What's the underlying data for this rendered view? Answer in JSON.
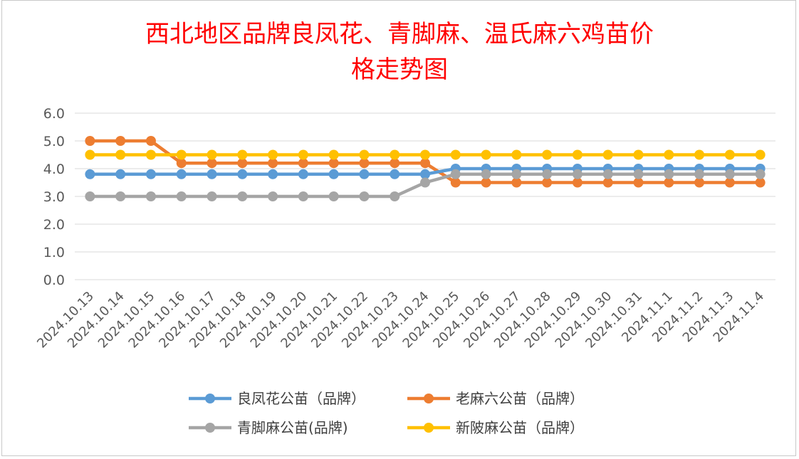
{
  "chart_data": {
    "type": "line",
    "title": "西北地区品牌良凤花、青脚麻、温氏麻六鸡苗价格走势图",
    "title_lines": [
      "西北地区品牌良凤花、青脚麻、温氏麻六鸡苗价",
      "格走势图"
    ],
    "xlabel": "",
    "ylabel": "",
    "ylim": [
      0,
      6
    ],
    "yticks": [
      "6.0",
      "5.0",
      "4.0",
      "3.0",
      "2.0",
      "1.0",
      "0.0"
    ],
    "grid": true,
    "legend_position": "bottom",
    "categories": [
      "2024.10.13",
      "2024.10.14",
      "2024.10.15",
      "2024.10.16",
      "2024.10.17",
      "2024.10.18",
      "2024.10.19",
      "2024.10.20",
      "2024.10.21",
      "2024.10.22",
      "2024.10.23",
      "2024.10.24",
      "2024.10.25",
      "2024.10.26",
      "2024.10.27",
      "2024.10.28",
      "2024.10.29",
      "2024.10.30",
      "2024.10.31",
      "2024.11.1",
      "2024.11.2",
      "2024.11.3",
      "2024.11.4"
    ],
    "series": [
      {
        "name": "良凤花公苗（品牌）",
        "color": "#5b9bd5",
        "values": [
          3.8,
          3.8,
          3.8,
          3.8,
          3.8,
          3.8,
          3.8,
          3.8,
          3.8,
          3.8,
          3.8,
          3.8,
          4.0,
          4.0,
          4.0,
          4.0,
          4.0,
          4.0,
          4.0,
          4.0,
          4.0,
          4.0,
          4.0
        ]
      },
      {
        "name": "老麻六公苗（品牌）",
        "color": "#ed7d31",
        "values": [
          5.0,
          5.0,
          5.0,
          4.2,
          4.2,
          4.2,
          4.2,
          4.2,
          4.2,
          4.2,
          4.2,
          4.2,
          3.5,
          3.5,
          3.5,
          3.5,
          3.5,
          3.5,
          3.5,
          3.5,
          3.5,
          3.5,
          3.5
        ]
      },
      {
        "name": "青脚麻公苗(品牌)",
        "color": "#a5a5a5",
        "values": [
          3.0,
          3.0,
          3.0,
          3.0,
          3.0,
          3.0,
          3.0,
          3.0,
          3.0,
          3.0,
          3.0,
          3.5,
          3.8,
          3.8,
          3.8,
          3.8,
          3.8,
          3.8,
          3.8,
          3.8,
          3.8,
          3.8,
          3.8
        ]
      },
      {
        "name": "新陂麻公苗（品牌）",
        "color": "#ffc000",
        "values": [
          4.5,
          4.5,
          4.5,
          4.5,
          4.5,
          4.5,
          4.5,
          4.5,
          4.5,
          4.5,
          4.5,
          4.5,
          4.5,
          4.5,
          4.5,
          4.5,
          4.5,
          4.5,
          4.5,
          4.5,
          4.5,
          4.5,
          4.5
        ]
      }
    ]
  }
}
